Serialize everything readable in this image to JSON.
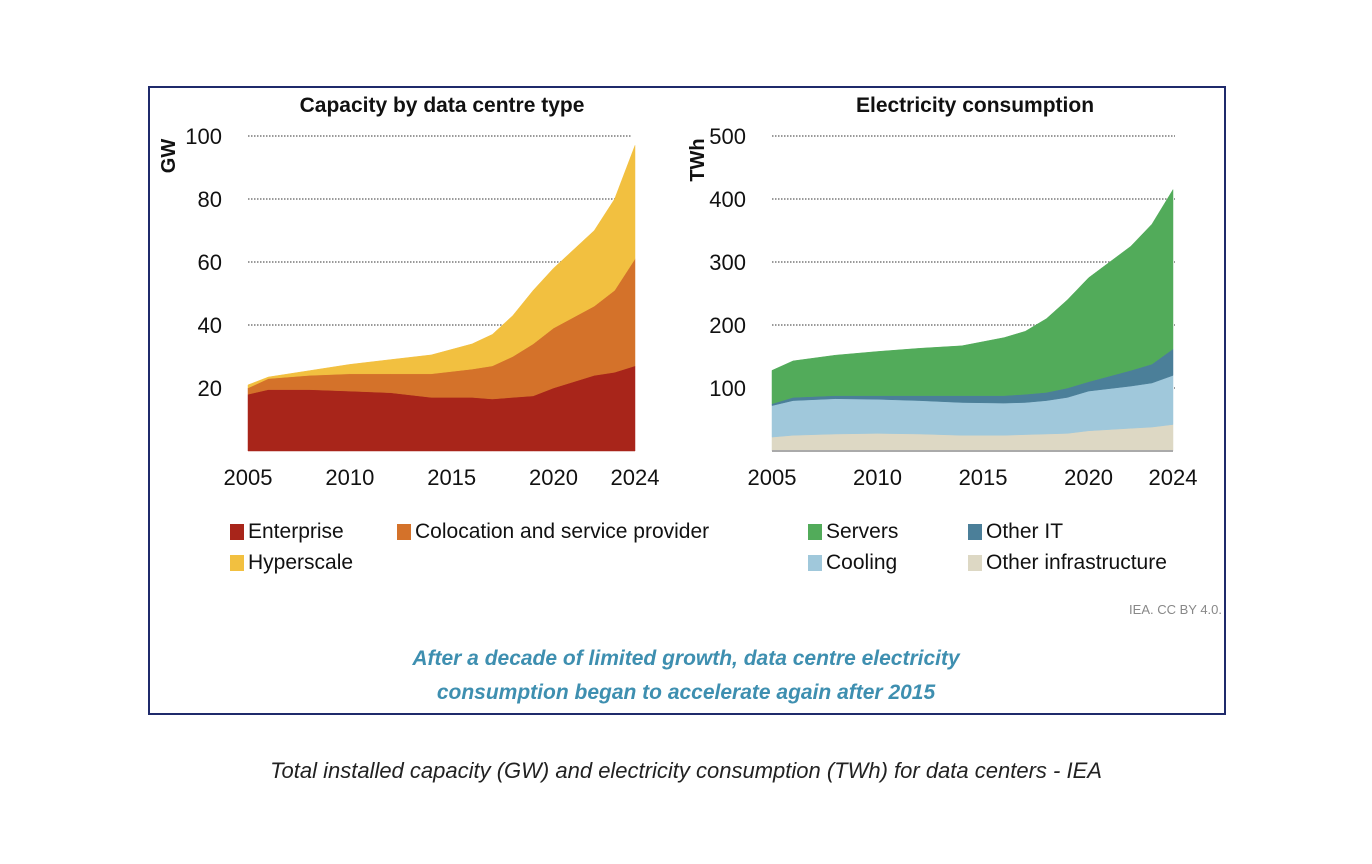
{
  "chart_data": [
    {
      "type": "area",
      "stacked": true,
      "title": "Capacity by data centre type",
      "ylabel": "GW",
      "xlabel": "",
      "ylim": [
        0,
        100
      ],
      "yticks": [
        20,
        40,
        60,
        80,
        100
      ],
      "xticks": [
        2005,
        2010,
        2015,
        2020,
        2024
      ],
      "grid": "dotted horizontal",
      "legend": "bottom",
      "x": [
        2005,
        2006,
        2008,
        2010,
        2012,
        2014,
        2016,
        2017,
        2018,
        2019,
        2020,
        2022,
        2023,
        2024
      ],
      "series": [
        {
          "name": "Enterprise",
          "color": "#a8251a",
          "values": [
            18,
            19.5,
            19.5,
            19,
            18.5,
            17,
            17,
            16.5,
            17,
            17.5,
            20,
            24,
            25,
            27
          ]
        },
        {
          "name": "Colocation and service provider",
          "color": "#d4722a",
          "values": [
            2,
            3.5,
            4.5,
            5.5,
            6,
            7.5,
            9,
            10.5,
            13,
            16.5,
            19,
            22,
            26,
            34
          ]
        },
        {
          "name": "Hyperscale",
          "color": "#f2c040",
          "values": [
            1,
            0.5,
            1.5,
            3,
            4.5,
            6,
            8,
            10,
            13,
            17,
            19,
            24,
            29,
            36
          ]
        }
      ]
    },
    {
      "type": "area",
      "stacked": true,
      "title": "Electricity consumption",
      "ylabel": "TWh",
      "xlabel": "",
      "ylim": [
        0,
        500
      ],
      "yticks": [
        100,
        200,
        300,
        400,
        500
      ],
      "xticks": [
        2005,
        2010,
        2015,
        2020,
        2024
      ],
      "grid": "dotted horizontal",
      "legend": "bottom",
      "x": [
        2005,
        2006,
        2008,
        2010,
        2012,
        2014,
        2016,
        2017,
        2018,
        2019,
        2020,
        2022,
        2023,
        2024
      ],
      "series": [
        {
          "name": "Other infrastructure",
          "color": "#ddd8c4",
          "values": [
            22,
            25,
            27,
            28,
            27,
            25,
            25,
            26,
            27,
            28,
            32,
            36,
            38,
            42
          ]
        },
        {
          "name": "Cooling",
          "color": "#a0c8db",
          "values": [
            50,
            55,
            56,
            54,
            53,
            52,
            51,
            51,
            53,
            57,
            63,
            67,
            70,
            78
          ]
        },
        {
          "name": "Other IT",
          "color": "#4b7f99",
          "values": [
            3,
            5,
            5,
            6,
            8,
            11,
            12,
            13,
            13,
            15,
            15,
            25,
            30,
            42
          ]
        },
        {
          "name": "Servers",
          "color": "#52ab5a",
          "values": [
            53,
            58,
            64,
            70,
            75,
            79,
            92,
            100,
            117,
            140,
            165,
            197,
            222,
            253
          ]
        }
      ]
    }
  ],
  "legend": {
    "left": [
      {
        "label": "Enterprise",
        "color": "#a8251a"
      },
      {
        "label": "Colocation and service provider",
        "color": "#d4722a"
      },
      {
        "label": "Hyperscale",
        "color": "#f2c040"
      }
    ],
    "right": [
      {
        "label": "Servers",
        "color": "#52ab5a"
      },
      {
        "label": "Other IT",
        "color": "#4b7f99"
      },
      {
        "label": "Cooling",
        "color": "#a0c8db"
      },
      {
        "label": "Other infrastructure",
        "color": "#ddd8c4"
      }
    ]
  },
  "credit": "IEA. CC BY 4.0.",
  "subtitle": {
    "line1": "After a decade of limited growth, data centre electricity",
    "line2": "consumption began to accelerate again after 2015"
  },
  "caption": "Total installed capacity (GW) and electricity consumption (TWh) for data centers - IEA",
  "colors": {
    "frame": "#1f2a6b",
    "subtitle": "#3e8fb0"
  }
}
